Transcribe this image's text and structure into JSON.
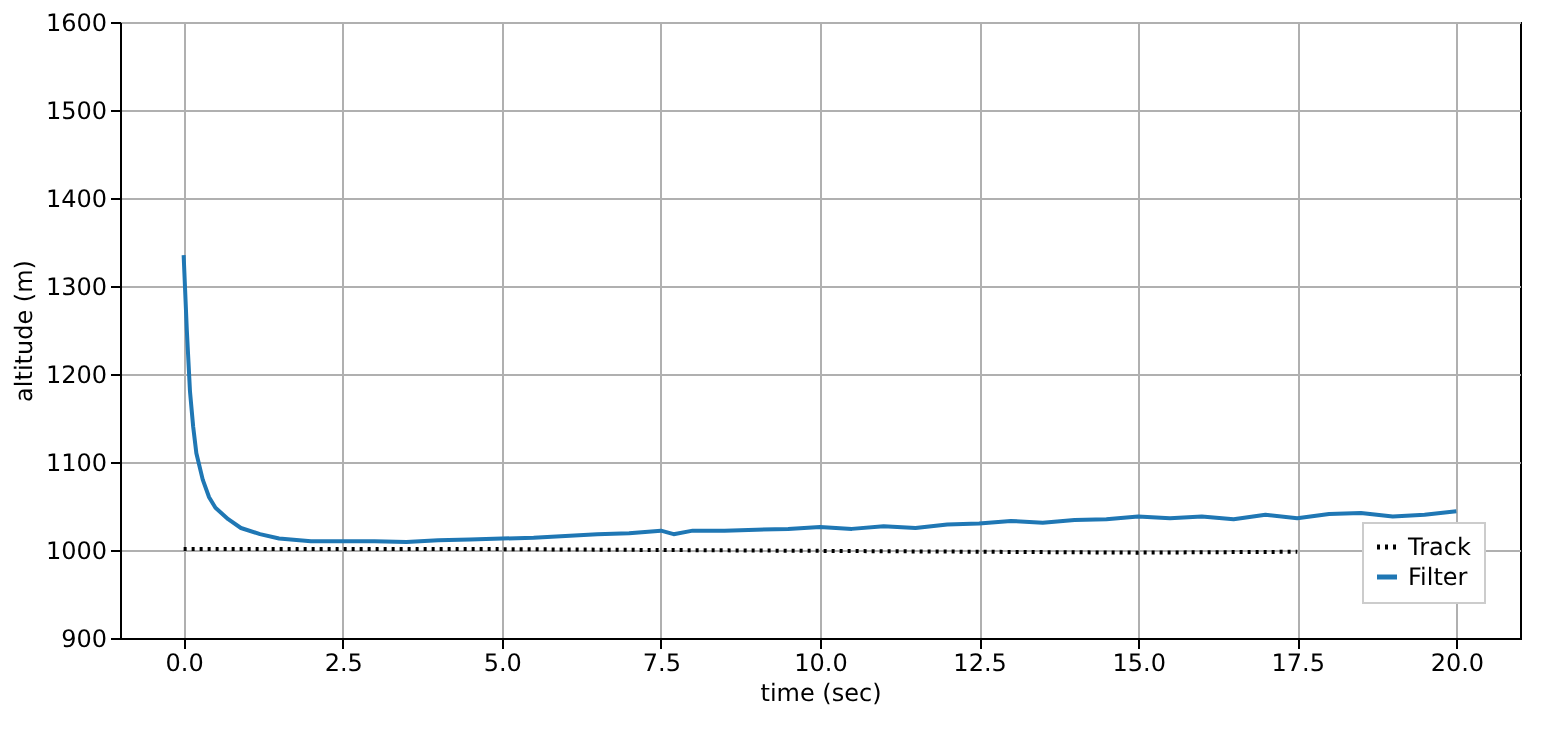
{
  "chart_data": {
    "type": "line",
    "xlabel": "time (sec)",
    "ylabel": "altitude (m)",
    "xlim": [
      -1,
      21
    ],
    "xticks": [
      {
        "value": 0,
        "label": "0.0"
      },
      {
        "value": 2.5,
        "label": "2.5"
      },
      {
        "value": 5,
        "label": "5.0"
      },
      {
        "value": 7.5,
        "label": "7.5"
      },
      {
        "value": 10,
        "label": "10.0"
      },
      {
        "value": 12.5,
        "label": "12.5"
      },
      {
        "value": 15,
        "label": "15.0"
      },
      {
        "value": 17.5,
        "label": "17.5"
      },
      {
        "value": 20,
        "label": "20.0"
      }
    ],
    "ylim": [
      900,
      1600
    ],
    "yticks": [
      900,
      1000,
      1100,
      1200,
      1300,
      1400,
      1500,
      1600
    ],
    "grid": true,
    "legend": "bottom right",
    "series": [
      {
        "name": "Track",
        "color": "#000000",
        "line_style": "dotted",
        "x": [
          0,
          5,
          10,
          15,
          17.5
        ],
        "values": [
          1001,
          1001,
          999,
          997,
          998
        ]
      },
      {
        "name": "Filter",
        "color": "#1f77b4",
        "line_style": "solid",
        "x": [
          0,
          0.05,
          0.1,
          0.15,
          0.2,
          0.3,
          0.4,
          0.5,
          0.7,
          0.9,
          1.2,
          1.5,
          2,
          2.5,
          3,
          3.5,
          4,
          4.5,
          5,
          5.5,
          6,
          6.5,
          7,
          7.5,
          7.7,
          8,
          8.5,
          9,
          9.5,
          10,
          10.5,
          11,
          11.5,
          12,
          12.5,
          13,
          13.5,
          14,
          14.5,
          15,
          15.5,
          16,
          16.5,
          17,
          17.5,
          18,
          18.5,
          19,
          19.5,
          20
        ],
        "values": [
          1335,
          1250,
          1180,
          1140,
          1110,
          1080,
          1060,
          1048,
          1035,
          1025,
          1018,
          1013,
          1010,
          1010,
          1010,
          1009,
          1011,
          1012,
          1013,
          1014,
          1016,
          1018,
          1019,
          1022,
          1018,
          1022,
          1022,
          1023,
          1024,
          1026,
          1024,
          1027,
          1025,
          1029,
          1030,
          1033,
          1031,
          1034,
          1035,
          1038,
          1036,
          1038,
          1035,
          1040,
          1036,
          1041,
          1042,
          1038,
          1040,
          1044
        ]
      }
    ]
  }
}
